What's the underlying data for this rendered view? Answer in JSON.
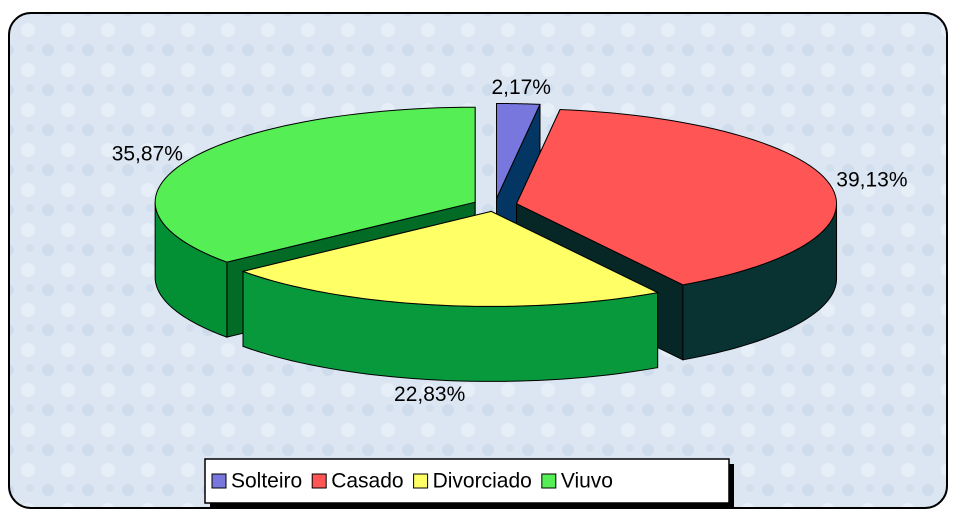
{
  "chart_data": {
    "type": "pie3d",
    "categories": [
      "Solteiro",
      "Casado",
      "Divorciado",
      "Viuvo"
    ],
    "values": [
      2.17,
      39.13,
      22.83,
      35.87
    ],
    "value_labels": [
      "2,17%",
      "39,13%",
      "22,83%",
      "35,87%"
    ],
    "colors": [
      "#7777dd",
      "#ff5555",
      "#ffff66",
      "#55ee55"
    ],
    "legend": "bottom"
  }
}
